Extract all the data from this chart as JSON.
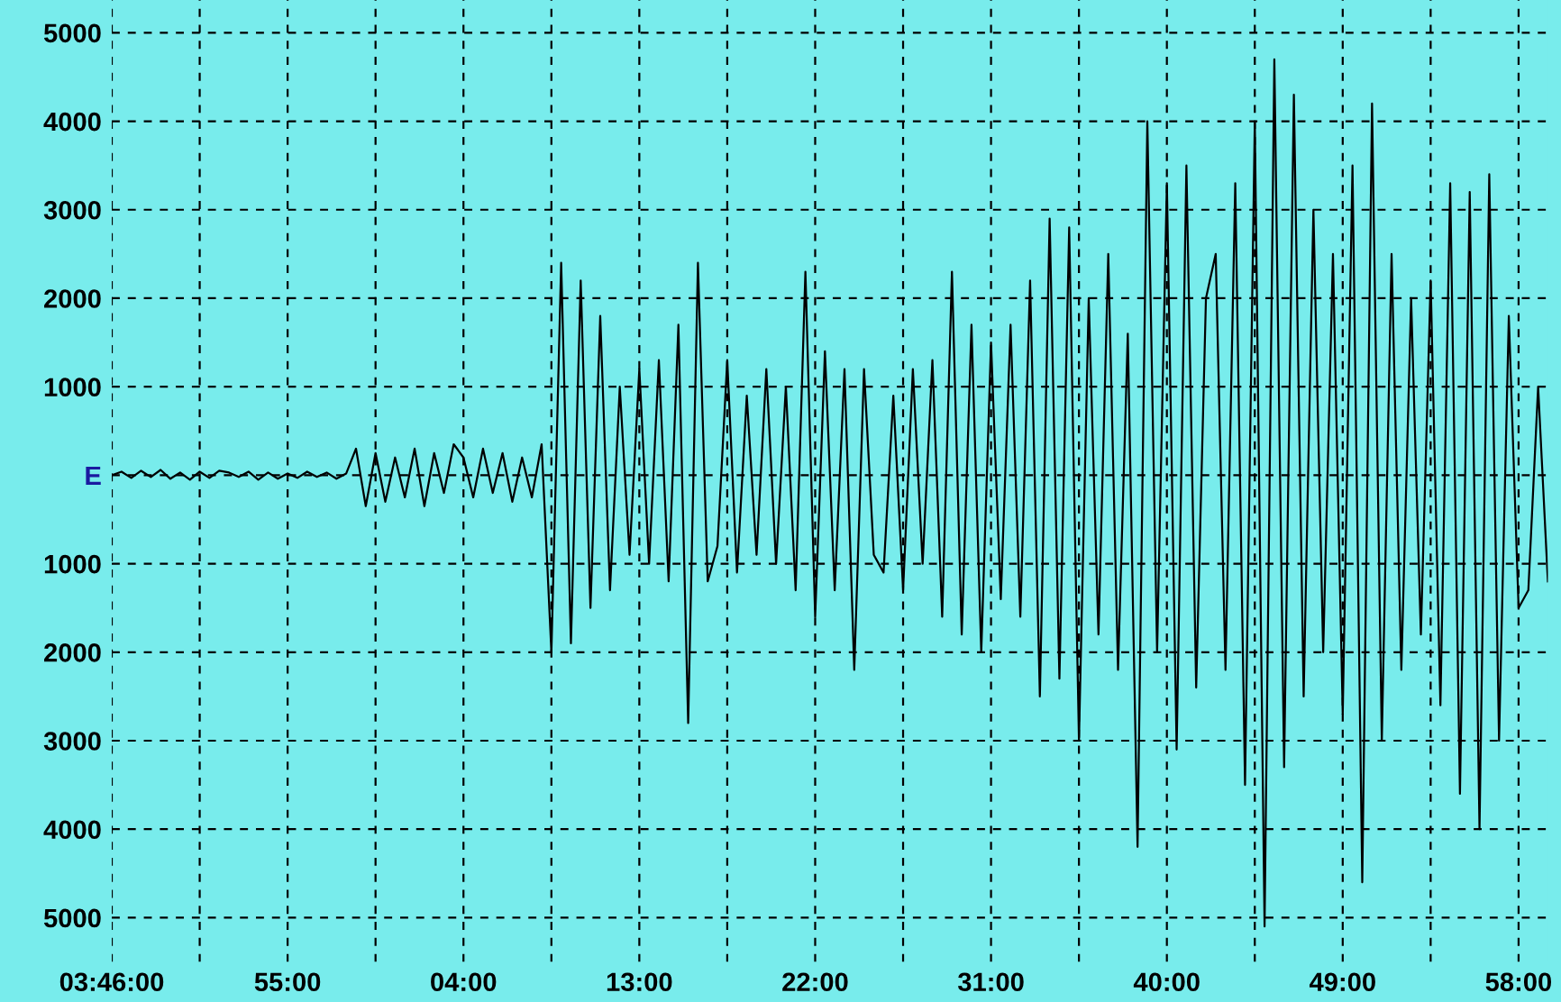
{
  "chart_data": {
    "type": "line",
    "color": "#000000",
    "categories": [
      "03:46:00",
      null,
      null,
      null,
      null,
      null,
      null,
      null,
      null,
      null,
      null,
      null,
      null,
      null,
      null,
      null,
      null,
      null,
      "55:00",
      null,
      null,
      null,
      null,
      null,
      null,
      null,
      null,
      null,
      null,
      null,
      null,
      null,
      null,
      null,
      null,
      null,
      "04:00",
      null,
      null,
      null,
      null,
      null,
      null,
      null,
      null,
      null,
      null,
      null,
      null,
      null,
      null,
      null,
      null,
      null,
      "13:00",
      null,
      null,
      null,
      null,
      null,
      null,
      null,
      null,
      null,
      null,
      null,
      null,
      null,
      null,
      null,
      null,
      null,
      "22:00",
      null,
      null,
      null,
      null,
      null,
      null,
      null,
      null,
      null,
      null,
      null,
      null,
      null,
      null,
      null,
      null,
      null,
      "31:00",
      null,
      null,
      null,
      null,
      null,
      null,
      null,
      null,
      null,
      null,
      null,
      null,
      null,
      null,
      null,
      null,
      null,
      "40:00",
      null,
      null,
      null,
      null,
      null,
      null,
      null,
      null,
      null,
      null,
      null,
      null,
      null,
      null,
      null,
      null,
      null,
      "49:00",
      null,
      null,
      null,
      null,
      null,
      null,
      null,
      null,
      null,
      null,
      null,
      null,
      null,
      null,
      null,
      null,
      null,
      "58:00",
      null,
      null,
      null
    ],
    "values": [
      0,
      40,
      -30,
      50,
      -20,
      60,
      -40,
      30,
      -50,
      40,
      -30,
      50,
      30,
      -20,
      40,
      -50,
      30,
      -40,
      20,
      -30,
      40,
      -20,
      30,
      -40,
      20,
      300,
      -350,
      250,
      -300,
      200,
      -250,
      300,
      -350,
      250,
      -200,
      350,
      200,
      -250,
      300,
      -200,
      250,
      -300,
      200,
      -250,
      350,
      -2000,
      2400,
      -1900,
      2200,
      -1500,
      1800,
      -1300,
      1000,
      -900,
      1200,
      -1000,
      1300,
      -1200,
      1700,
      -2800,
      2400,
      -1200,
      -800,
      1300,
      -1100,
      900,
      -900,
      1200,
      -1000,
      1000,
      -1300,
      2300,
      -1600,
      1400,
      -1300,
      1200,
      -2200,
      1200,
      -900,
      -1100,
      900,
      -1300,
      1200,
      -1000,
      1300,
      -1600,
      2300,
      -1800,
      1700,
      -2000,
      1500,
      -1400,
      1700,
      -1600,
      2200,
      -2500,
      2900,
      -2300,
      2800,
      -3000,
      2000,
      -1800,
      2500,
      -2200,
      1600,
      -4200,
      4000,
      -2000,
      3300,
      -3100,
      3500,
      -2400,
      2000,
      2500,
      -2200,
      3300,
      -3500,
      4000,
      -5100,
      4700,
      -3300,
      4300,
      -2500,
      3000,
      -2000,
      2500,
      -2700,
      3500,
      -4600,
      4200,
      -3000,
      2500,
      -2200,
      2000,
      -1800,
      2200,
      -2600,
      3300,
      -3600,
      3200,
      -4000,
      3400,
      -3000,
      1800,
      -1500,
      -1300,
      1000,
      -1200
    ],
    "ylim": [
      -5500,
      5370
    ],
    "yticks": [
      {
        "value": 5000,
        "label": "5000"
      },
      {
        "value": 4000,
        "label": "4000"
      },
      {
        "value": 3000,
        "label": "3000"
      },
      {
        "value": 2000,
        "label": "2000"
      },
      {
        "value": 1000,
        "label": "1000"
      },
      {
        "value": 0,
        "label": "E"
      },
      {
        "value": -1000,
        "label": "1000"
      },
      {
        "value": -2000,
        "label": "2000"
      },
      {
        "value": -3000,
        "label": "3000"
      },
      {
        "value": -4000,
        "label": "4000"
      },
      {
        "value": -5000,
        "label": "5000"
      }
    ],
    "grid": true,
    "line_style": "solid",
    "marker": "none"
  }
}
